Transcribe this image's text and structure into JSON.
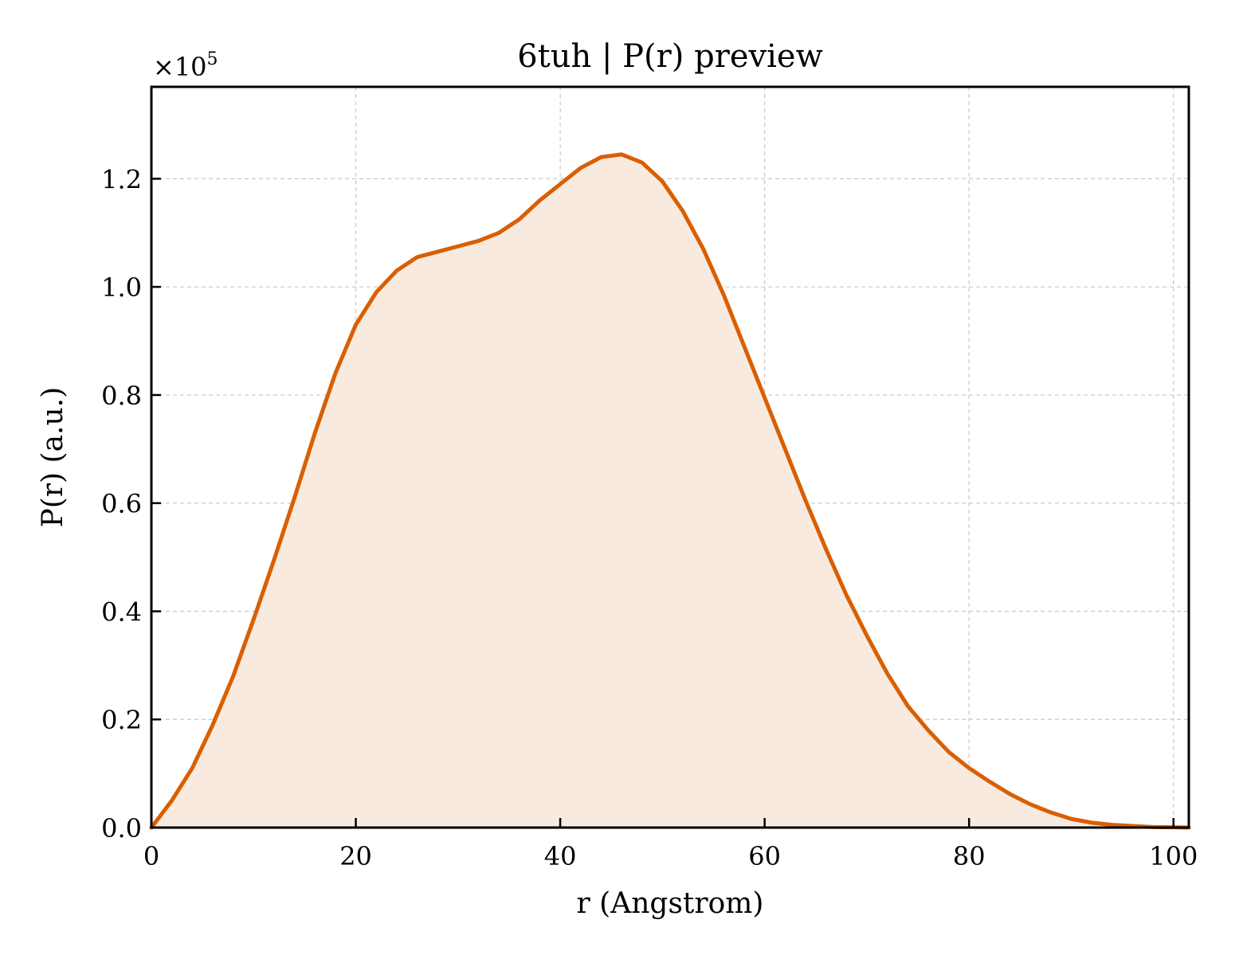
{
  "chart_data": {
    "type": "area",
    "title": "6tuh | P(r) preview",
    "xlabel": "r (Angstrom)",
    "ylabel": "P(r) (a.u.)",
    "y_offset_label": "×10",
    "y_offset_exponent": "5",
    "y_scale_factor": 100000,
    "xlim": [
      0,
      101.5
    ],
    "ylim": [
      0,
      1.37
    ],
    "x_ticks": [
      0,
      20,
      40,
      60,
      80,
      100
    ],
    "x_tick_labels": [
      "0",
      "20",
      "40",
      "60",
      "80",
      "100"
    ],
    "y_ticks": [
      0.0,
      0.2,
      0.4,
      0.6,
      0.8,
      1.0,
      1.2
    ],
    "y_tick_labels": [
      "0.0",
      "0.2",
      "0.4",
      "0.6",
      "0.8",
      "1.0",
      "1.2"
    ],
    "grid": true,
    "line_color": "#d95f02",
    "fill_color": "#f9eadf",
    "series": [
      {
        "x": [
          0,
          2,
          4,
          6,
          8,
          10,
          12,
          14,
          16,
          18,
          20,
          22,
          24,
          26,
          28,
          30,
          32,
          34,
          36,
          38,
          40,
          42,
          44,
          46,
          48,
          50,
          52,
          54,
          56,
          58,
          60,
          62,
          64,
          66,
          68,
          70,
          72,
          74,
          76,
          78,
          80,
          82,
          84,
          86,
          88,
          90,
          92,
          94,
          96,
          98,
          100,
          101.5
        ],
        "y": [
          0.0,
          0.05,
          0.11,
          0.19,
          0.28,
          0.385,
          0.495,
          0.61,
          0.73,
          0.84,
          0.93,
          0.99,
          1.03,
          1.055,
          1.065,
          1.075,
          1.085,
          1.1,
          1.125,
          1.16,
          1.19,
          1.22,
          1.24,
          1.245,
          1.23,
          1.195,
          1.14,
          1.07,
          0.985,
          0.89,
          0.795,
          0.7,
          0.605,
          0.515,
          0.43,
          0.355,
          0.285,
          0.225,
          0.18,
          0.14,
          0.11,
          0.085,
          0.062,
          0.043,
          0.028,
          0.016,
          0.009,
          0.005,
          0.003,
          0.001,
          0.0005,
          0.0
        ]
      }
    ]
  }
}
